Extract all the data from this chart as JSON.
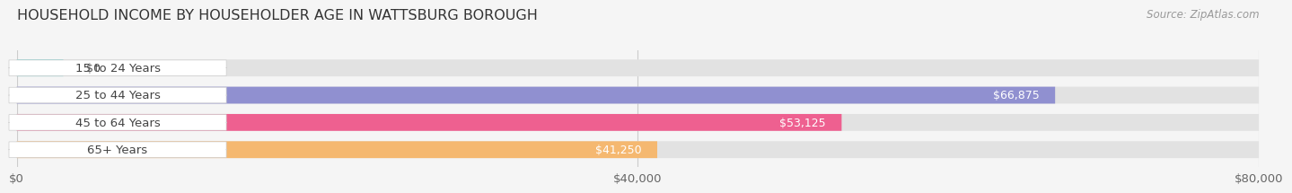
{
  "title": "HOUSEHOLD INCOME BY HOUSEHOLDER AGE IN WATTSBURG BOROUGH",
  "source": "Source: ZipAtlas.com",
  "categories": [
    "15 to 24 Years",
    "25 to 44 Years",
    "45 to 64 Years",
    "65+ Years"
  ],
  "values": [
    0,
    66875,
    53125,
    41250
  ],
  "bar_colors": [
    "#6dcfcf",
    "#9090d0",
    "#ee6090",
    "#f5b870"
  ],
  "value_labels": [
    "$0",
    "$66,875",
    "$53,125",
    "$41,250"
  ],
  "xlim": [
    0,
    80000
  ],
  "xticks": [
    0,
    40000,
    80000
  ],
  "xtick_labels": [
    "$0",
    "$40,000",
    "$80,000"
  ],
  "bar_height": 0.62,
  "background_color": "#f5f5f5",
  "bar_bg_color": "#e2e2e2",
  "label_pill_color": "#ffffff",
  "title_fontsize": 11.5,
  "label_fontsize": 9.5,
  "value_fontsize": 9,
  "source_fontsize": 8.5,
  "grid_color": "#cccccc"
}
